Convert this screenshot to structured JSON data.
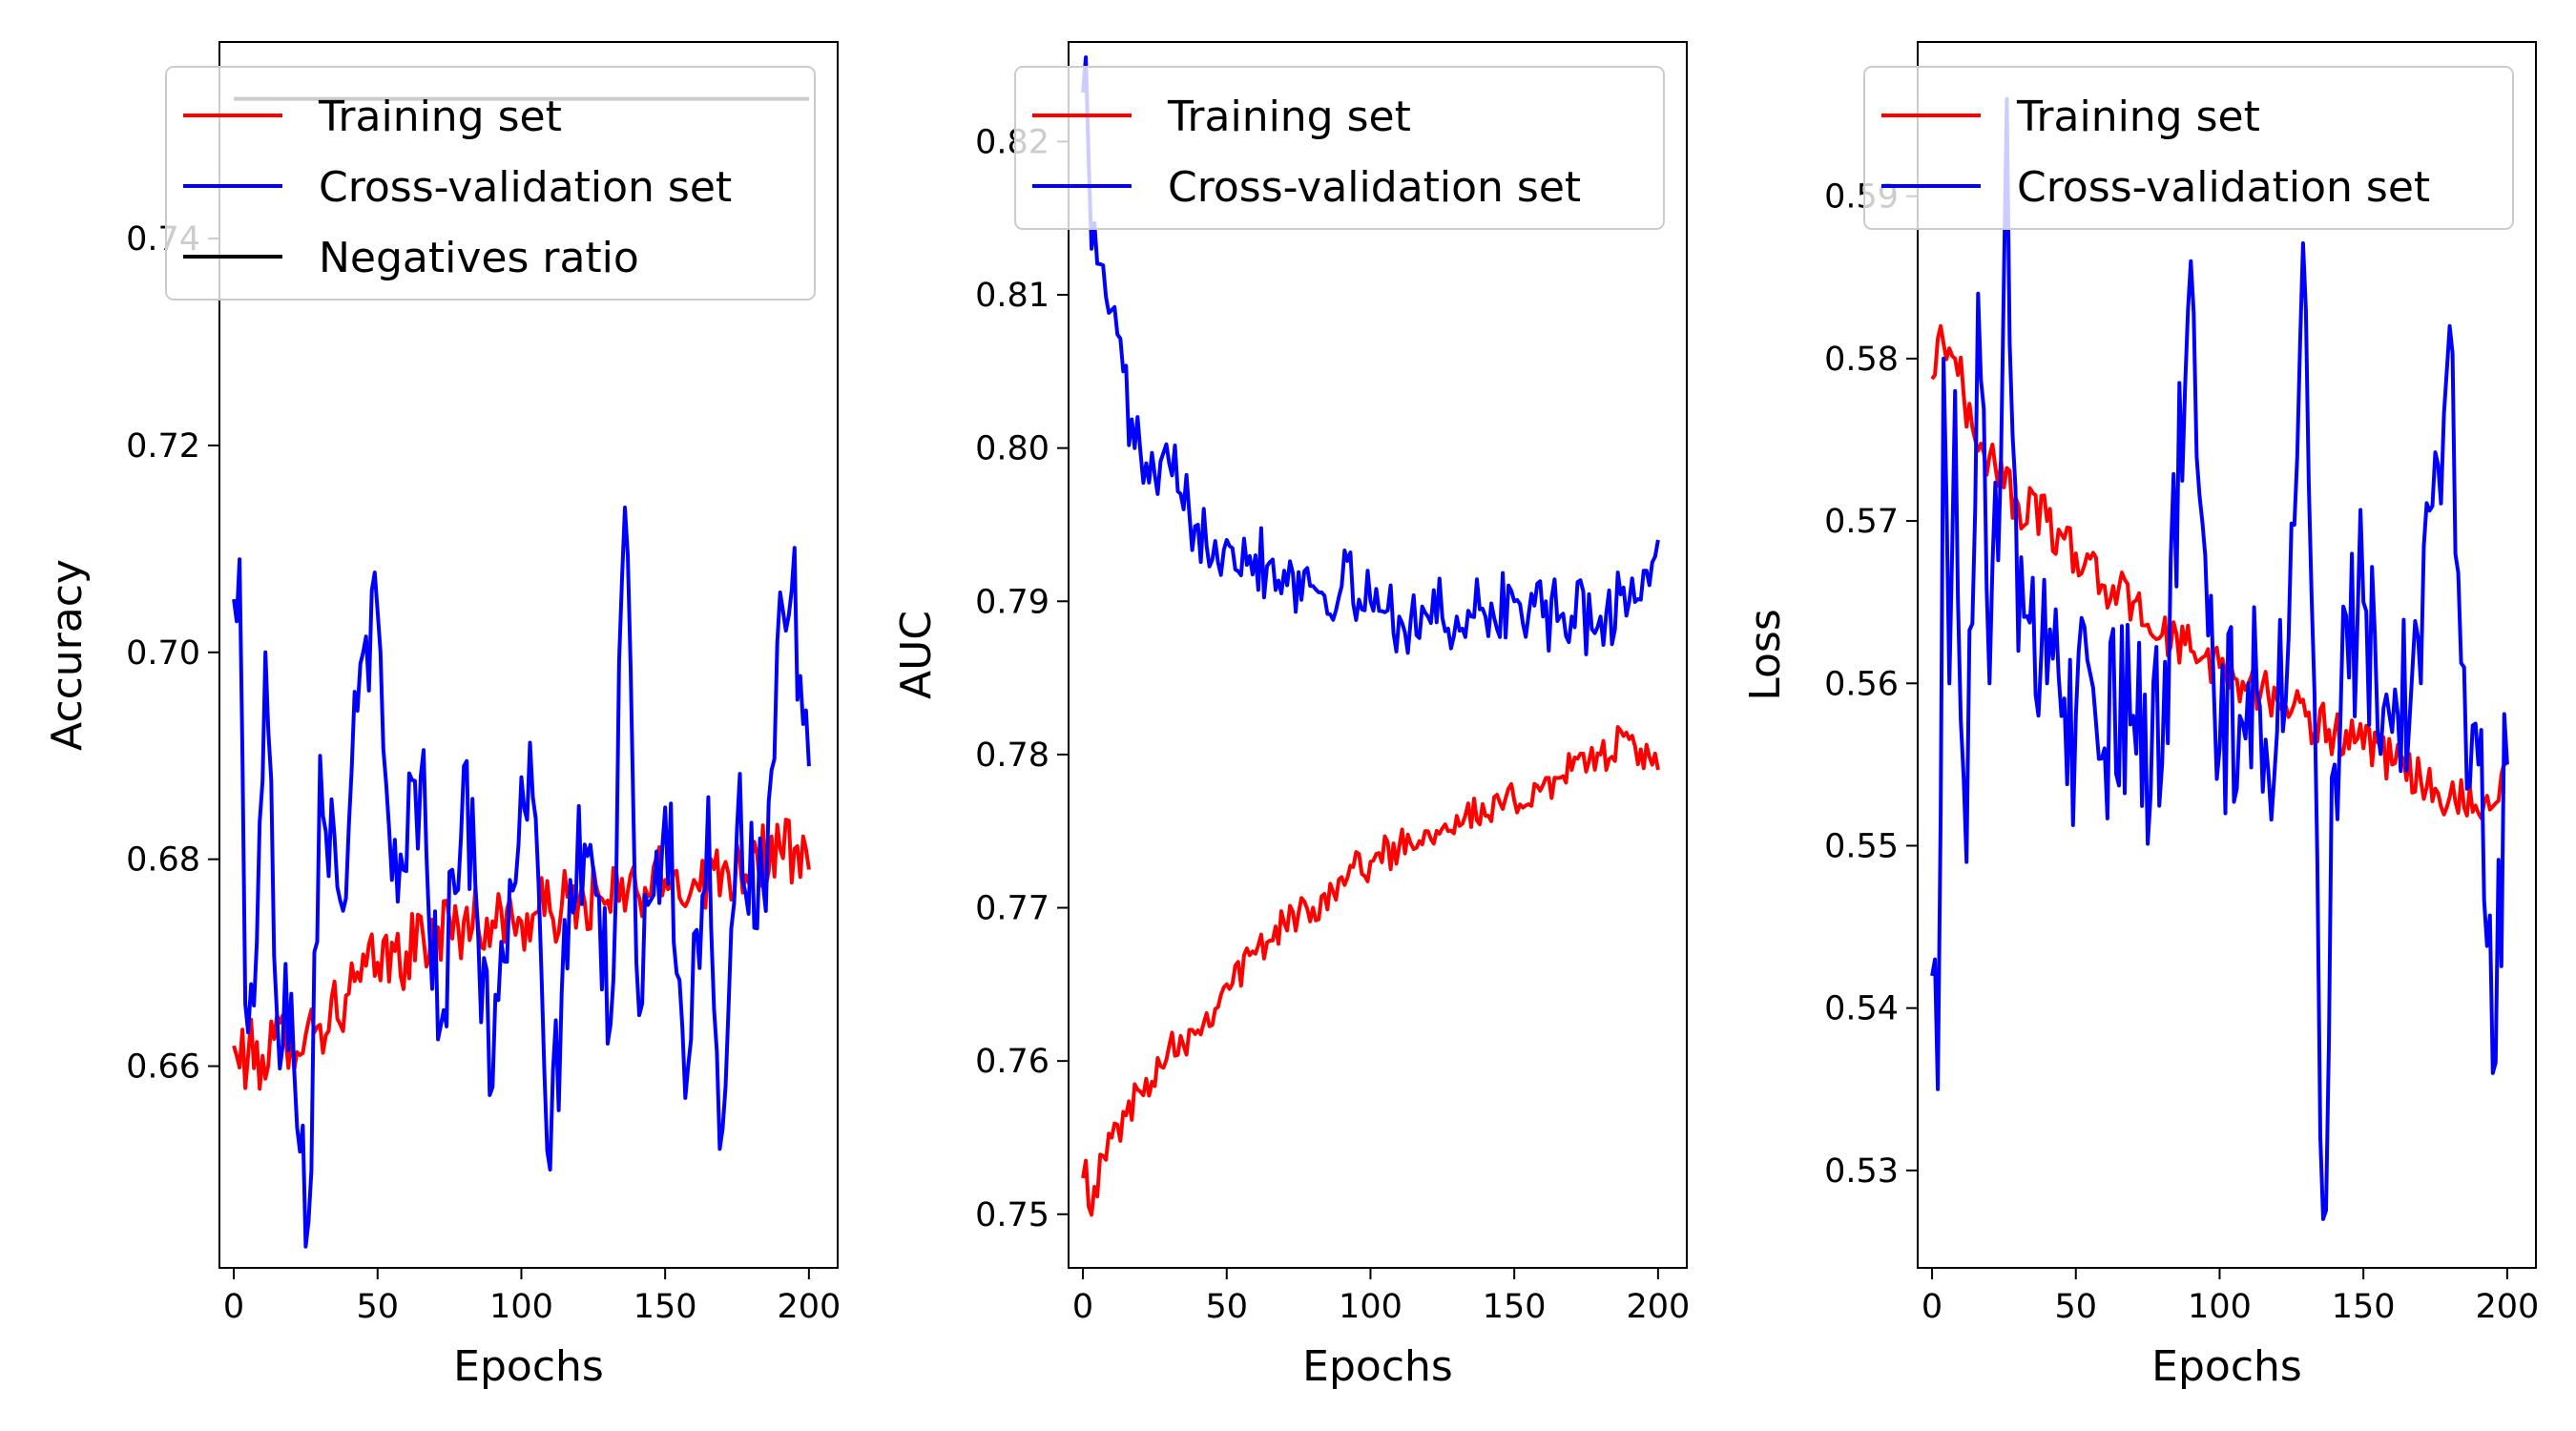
{
  "colors": {
    "training": "#ff0000",
    "cv": "#0000ff",
    "negatives": "#000000"
  },
  "chart_data": [
    {
      "type": "line",
      "xlabel": "Epochs",
      "ylabel": "Accuracy",
      "xlim": [
        -5,
        210
      ],
      "ylim": [
        0.6405,
        0.759
      ],
      "xticks": [
        0,
        50,
        100,
        150,
        200
      ],
      "xtick_labels": [
        "0",
        "50",
        "100",
        "150",
        "200"
      ],
      "yticks": [
        0.66,
        0.68,
        0.7,
        0.72,
        0.74
      ],
      "ytick_labels": [
        "0.66",
        "0.68",
        "0.70",
        "0.72",
        "0.74"
      ],
      "legend_position": "upper-right",
      "series": [
        {
          "name": "Training set",
          "color": "#ff0000",
          "x": [
            1,
            10,
            20,
            30,
            40,
            50,
            60,
            70,
            80,
            90,
            100,
            110,
            120,
            130,
            140,
            150,
            160,
            170,
            180,
            190,
            200
          ],
          "y": [
            0.661,
            0.661,
            0.663,
            0.664,
            0.667,
            0.67,
            0.671,
            0.673,
            0.674,
            0.674,
            0.674,
            0.675,
            0.676,
            0.676,
            0.677,
            0.678,
            0.678,
            0.679,
            0.68,
            0.681,
            0.679
          ],
          "noise": 0.0035
        },
        {
          "name": "Cross-validation set",
          "color": "#0000ff",
          "x": [
            1,
            2,
            4,
            8,
            11,
            15,
            20,
            26,
            30,
            37,
            48,
            55,
            65,
            72,
            80,
            90,
            96,
            104,
            110,
            117,
            125,
            131,
            136,
            140,
            150,
            158,
            165,
            169,
            175,
            185,
            191,
            194,
            200
          ],
          "y": [
            0.703,
            0.709,
            0.666,
            0.672,
            0.7,
            0.665,
            0.667,
            0.645,
            0.69,
            0.676,
            0.706,
            0.678,
            0.688,
            0.664,
            0.689,
            0.658,
            0.678,
            0.686,
            0.65,
            0.678,
            0.679,
            0.664,
            0.714,
            0.67,
            0.685,
            0.66,
            0.686,
            0.652,
            0.683,
            0.675,
            0.704,
            0.706,
            0.689
          ],
          "noise": 0.007
        },
        {
          "name": "Negatives ratio",
          "color": "#000000",
          "x": [
            0,
            200
          ],
          "y": [
            0.7535,
            0.7535
          ],
          "noise": 0
        }
      ]
    },
    {
      "type": "line",
      "xlabel": "Epochs",
      "ylabel": "AUC",
      "xlim": [
        -5,
        210
      ],
      "ylim": [
        0.7465,
        0.8265
      ],
      "xticks": [
        0,
        50,
        100,
        150,
        200
      ],
      "xtick_labels": [
        "0",
        "50",
        "100",
        "150",
        "200"
      ],
      "yticks": [
        0.75,
        0.76,
        0.77,
        0.78,
        0.79,
        0.8,
        0.81,
        0.82
      ],
      "ytick_labels": [
        "0.75",
        "0.76",
        "0.77",
        "0.78",
        "0.79",
        "0.80",
        "0.81",
        "0.82"
      ],
      "legend_position": "upper-right",
      "series": [
        {
          "name": "Training set",
          "color": "#ff0000",
          "x": [
            1,
            2,
            10,
            20,
            30,
            40,
            50,
            60,
            70,
            80,
            90,
            100,
            110,
            120,
            130,
            140,
            150,
            160,
            170,
            180,
            190,
            200
          ],
          "y": [
            0.7535,
            0.7505,
            0.755,
            0.758,
            0.761,
            0.762,
            0.765,
            0.767,
            0.769,
            0.77,
            0.772,
            0.773,
            0.774,
            0.775,
            0.776,
            0.776,
            0.777,
            0.778,
            0.779,
            0.78,
            0.781,
            0.779
          ],
          "noise": 0.0012
        },
        {
          "name": "Cross-validation set",
          "color": "#0000ff",
          "x": [
            1,
            3,
            6,
            10,
            14,
            18,
            22,
            26,
            30,
            35,
            40,
            50,
            60,
            70,
            80,
            90,
            100,
            110,
            120,
            130,
            140,
            150,
            160,
            170,
            180,
            190,
            195,
            200
          ],
          "y": [
            0.8255,
            0.813,
            0.812,
            0.809,
            0.805,
            0.8,
            0.799,
            0.797,
            0.799,
            0.796,
            0.795,
            0.794,
            0.793,
            0.792,
            0.791,
            0.791,
            0.79,
            0.789,
            0.789,
            0.789,
            0.789,
            0.79,
            0.789,
            0.789,
            0.789,
            0.79,
            0.792,
            0.794
          ],
          "noise": 0.0025
        }
      ]
    },
    {
      "type": "line",
      "xlabel": "Epochs",
      "ylabel": "Loss",
      "xlim": [
        -5,
        210
      ],
      "ylim": [
        0.524,
        0.5995
      ],
      "xticks": [
        0,
        50,
        100,
        150,
        200
      ],
      "xtick_labels": [
        "0",
        "50",
        "100",
        "150",
        "200"
      ],
      "yticks": [
        0.53,
        0.54,
        0.55,
        0.56,
        0.57,
        0.58,
        0.59
      ],
      "ytick_labels": [
        "0.53",
        "0.54",
        "0.55",
        "0.56",
        "0.57",
        "0.58",
        "0.59"
      ],
      "legend_position": "upper-right",
      "series": [
        {
          "name": "Training set",
          "color": "#ff0000",
          "x": [
            1,
            3,
            8,
            15,
            20,
            30,
            40,
            50,
            60,
            70,
            80,
            90,
            100,
            110,
            120,
            130,
            140,
            150,
            160,
            170,
            180,
            190,
            200
          ],
          "y": [
            0.579,
            0.582,
            0.58,
            0.575,
            0.574,
            0.571,
            0.57,
            0.568,
            0.566,
            0.565,
            0.563,
            0.562,
            0.561,
            0.56,
            0.559,
            0.558,
            0.557,
            0.556,
            0.555,
            0.554,
            0.553,
            0.552,
            0.555
          ],
          "noise": 0.0015
        },
        {
          "name": "Cross-validation set",
          "color": "#0000ff",
          "x": [
            1,
            2,
            4,
            6,
            8,
            12,
            16,
            20,
            24,
            26,
            30,
            40,
            50,
            60,
            70,
            80,
            90,
            100,
            110,
            120,
            130,
            136,
            140,
            150,
            160,
            170,
            180,
            185,
            190,
            195,
            200
          ],
          "y": [
            0.543,
            0.535,
            0.58,
            0.56,
            0.578,
            0.549,
            0.584,
            0.56,
            0.574,
            0.596,
            0.562,
            0.56,
            0.558,
            0.556,
            0.558,
            0.555,
            0.586,
            0.556,
            0.56,
            0.557,
            0.583,
            0.527,
            0.555,
            0.565,
            0.557,
            0.56,
            0.582,
            0.561,
            0.555,
            0.536,
            0.555
          ],
          "noise": 0.007
        }
      ]
    }
  ]
}
